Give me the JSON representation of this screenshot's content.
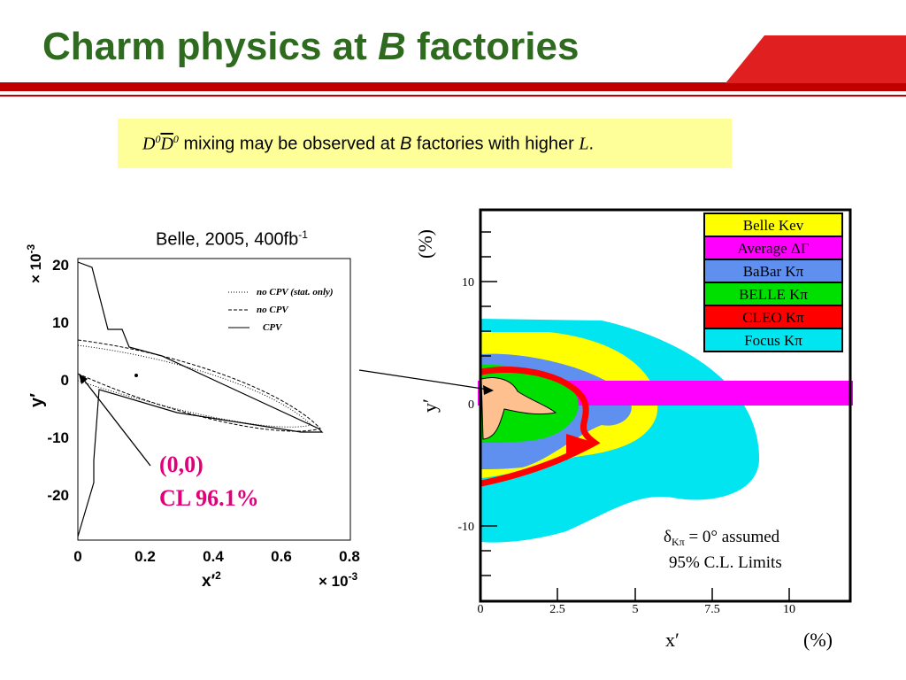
{
  "slide": {
    "title_part1": "Charm physics at ",
    "title_italic": "B",
    "title_part2": " factories",
    "callout": {
      "d0": "D",
      "sup0a": "0",
      "d0bar": "D",
      "sup0b": "0",
      "text1": " mixing may be observed at ",
      "italic_b": "B",
      "text2": " factories with higher ",
      "italic_l": "L",
      "period": "."
    }
  },
  "left_plot": {
    "label": "Belle, 2005, 400fb",
    "label_sup": "-1",
    "y_scale": "× 10",
    "y_scale_exp": "-3",
    "x_scale": "× 10",
    "x_scale_exp": "-3",
    "ylabel": "y′",
    "xlabel": "x′",
    "xlabel_sup": "2",
    "y_ticks": [
      "20",
      "10",
      "0",
      "-10",
      "-20"
    ],
    "x_ticks": [
      "0",
      "0.2",
      "0.4",
      "0.6",
      "0.8"
    ],
    "legend": [
      "no CPV (stat. only)",
      "no CPV",
      "CPV"
    ],
    "annotation_line1": "(0,0)",
    "annotation_line2": "CL 96.1%"
  },
  "right_plot": {
    "ylabel": "y′",
    "yunit": "(%)",
    "xlabel": "x′",
    "xunit": "(%)",
    "y_ticks": [
      "10",
      "0",
      "-10"
    ],
    "x_ticks": [
      "0",
      "2.5",
      "5",
      "7.5",
      "10"
    ],
    "legend": [
      {
        "label": "Belle Kev",
        "color": "#ffff00"
      },
      {
        "label": "Average ΔΓ",
        "color": "#ff00ff"
      },
      {
        "label": "BaBar Kπ",
        "color": "#5f8fef"
      },
      {
        "label": "BELLE Kπ",
        "color": "#00e000"
      },
      {
        "label": "CLEO Kπ",
        "color": "#ff0000"
      },
      {
        "label": "Focus Kπ",
        "color": "#00e5f0"
      }
    ],
    "note1": "δ",
    "note1_sub": "Kπ",
    "note1_rest": " = 0° assumed",
    "note2": "95% C.L. Limits"
  },
  "colors": {
    "title": "#2e6b1f",
    "accent_red": "#c00000",
    "callout_bg": "#ffff99",
    "annotation": "#e0007a"
  }
}
